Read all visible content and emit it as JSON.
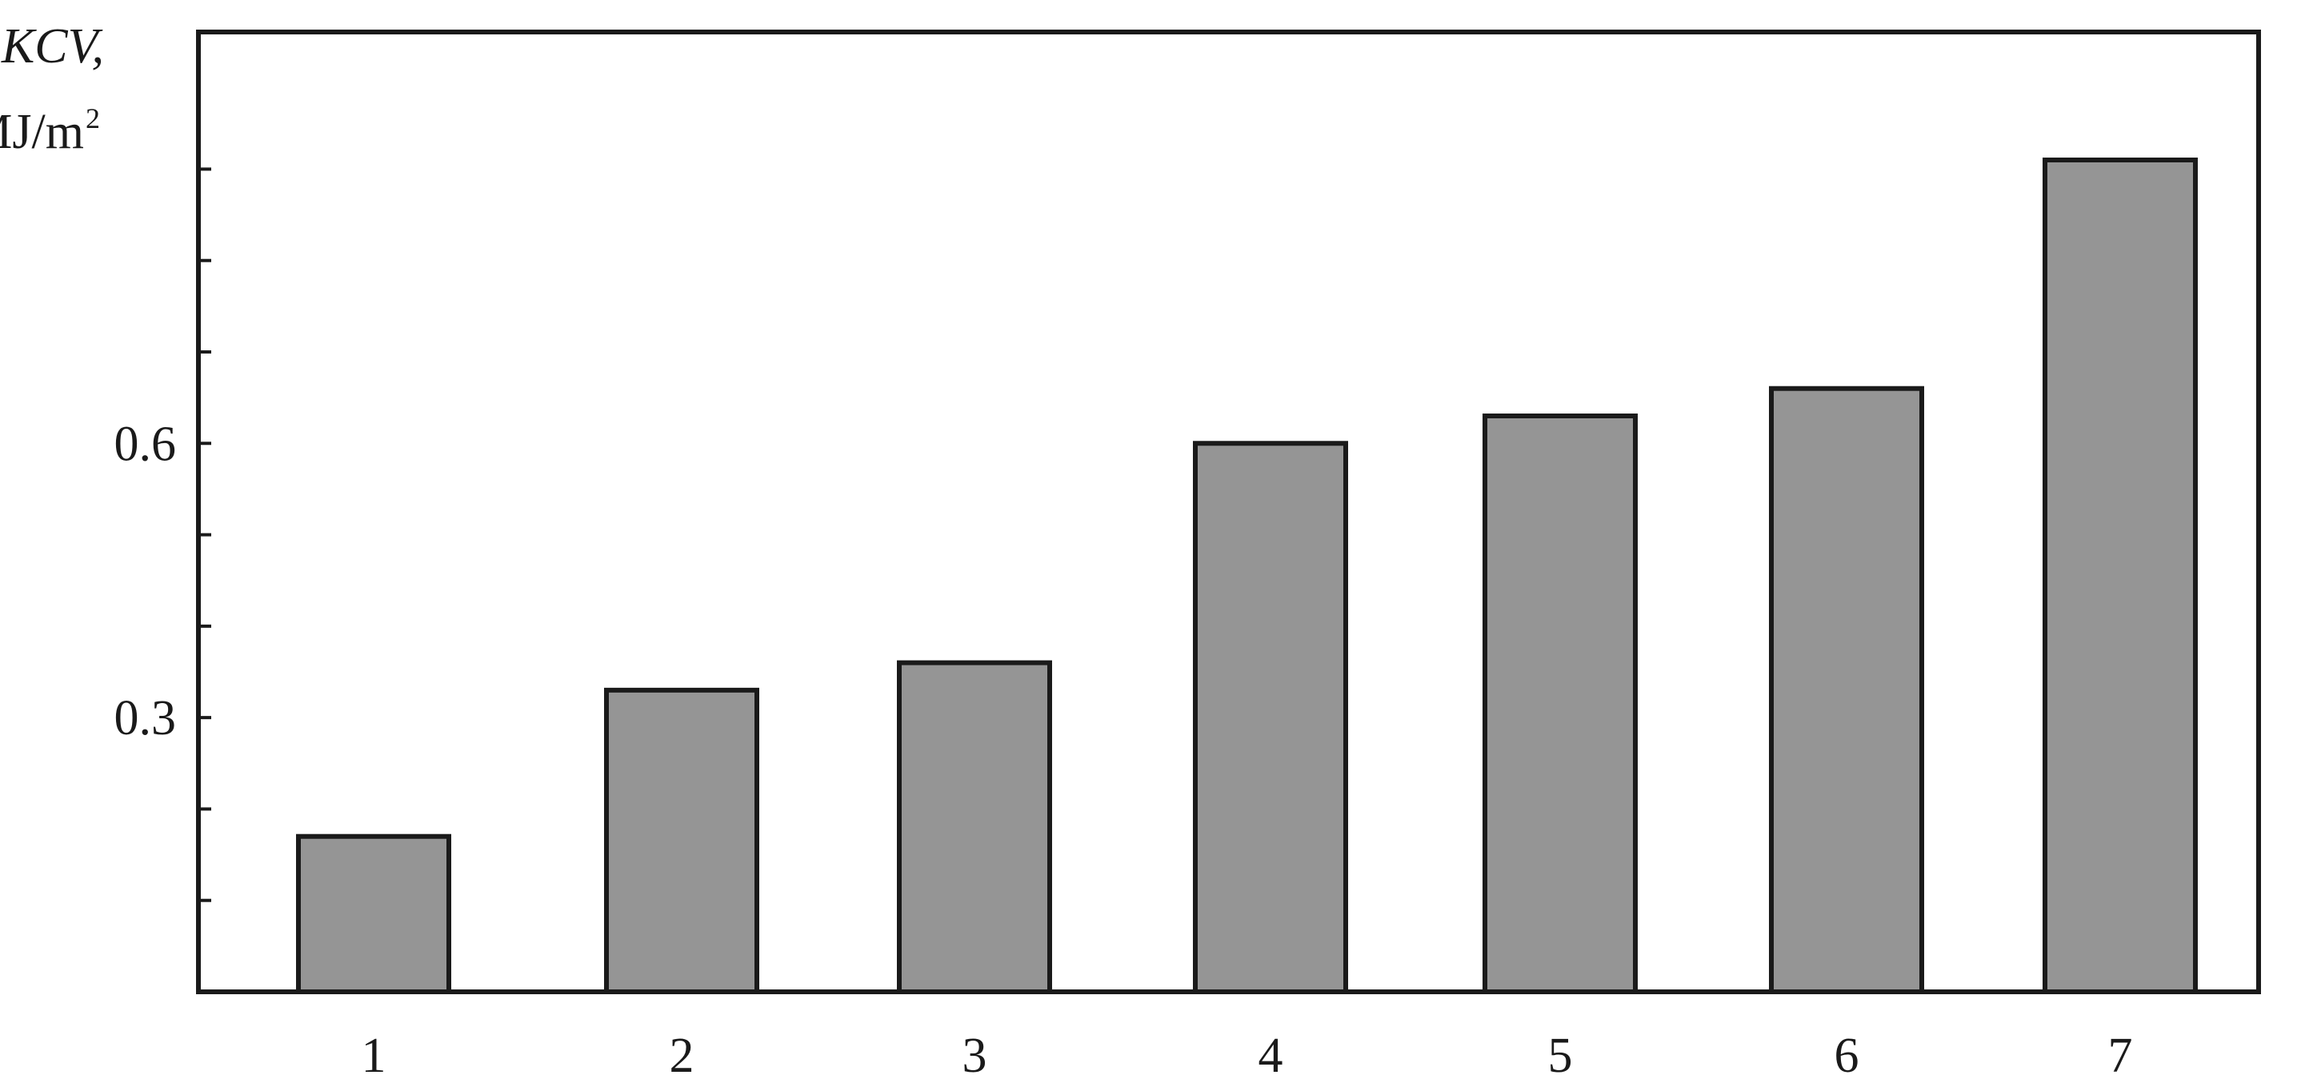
{
  "chart_data": {
    "type": "bar",
    "categories": [
      "1",
      "2",
      "3",
      "4",
      "5",
      "6",
      "7"
    ],
    "values": [
      0.17,
      0.33,
      0.36,
      0.6,
      0.63,
      0.66,
      0.91
    ],
    "ylabel": "KCV,",
    "ylabel_unit": "MJ/m",
    "ylabel_unit_superscript": "2",
    "ylim": [
      0,
      1.05
    ],
    "y_tick_values": [
      0.1,
      0.2,
      0.3,
      0.4,
      0.5,
      0.6,
      0.7,
      0.8,
      0.9
    ],
    "y_tick_labels": [
      {
        "value": 0.3,
        "label": "0.3"
      },
      {
        "value": 0.6,
        "label": "0.6"
      }
    ],
    "bar_color": "#959595",
    "edge_color": "#1a1a1a",
    "grid": false,
    "legend": "none"
  }
}
